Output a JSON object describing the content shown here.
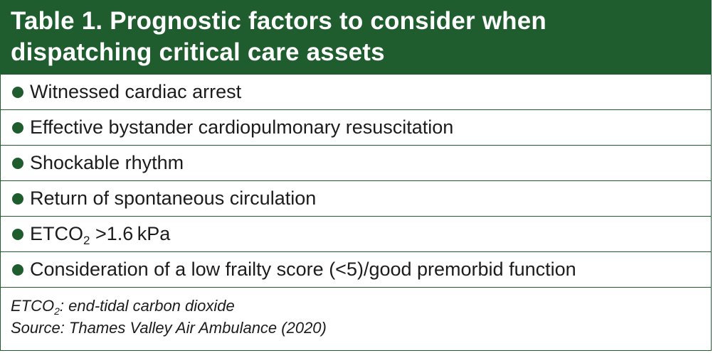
{
  "table": {
    "title_line1": "Table 1. Prognostic factors to consider when",
    "title_line2": "dispatching critical care assets",
    "rows": [
      {
        "text": "Witnessed cardiac arrest"
      },
      {
        "text": "Effective bystander cardiopulmonary resuscitation"
      },
      {
        "text": "Shockable rhythm"
      },
      {
        "text": "Return of spontaneous circulation"
      },
      {
        "text_pre": "ETCO",
        "text_sub": "2",
        "text_post": " >1.6 kPa"
      },
      {
        "text": "Consideration of a low frailty score (<5)/good premorbid function"
      }
    ],
    "footnote": {
      "abbrev_term": "ETCO",
      "abbrev_sub": "2",
      "abbrev_def": ": end-tidal carbon dioxide",
      "source": "Source: Thames Valley Air Ambulance (2020)"
    }
  },
  "colors": {
    "brand_green": "#1f5d2e",
    "header_text": "#ffffff",
    "body_text": "#1c1c1c"
  }
}
